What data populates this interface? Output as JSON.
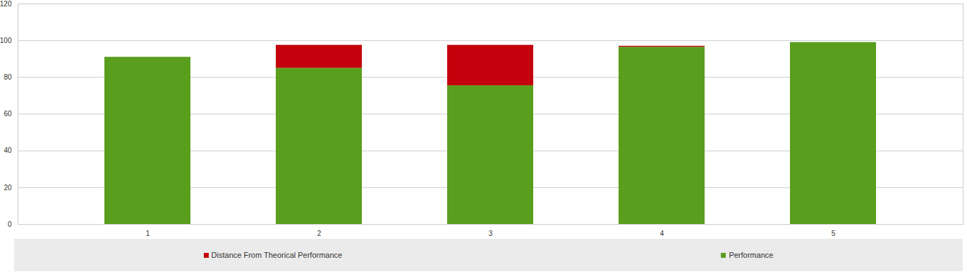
{
  "chart_data": {
    "type": "bar",
    "stacked": true,
    "grid": true,
    "legend": "bottom",
    "categories": [
      "1",
      "2",
      "3",
      "4",
      "5"
    ],
    "series": [
      {
        "name": "Performance",
        "color": "#5a9e1e",
        "values": [
          91,
          85,
          75.5,
          96.5,
          99
        ]
      },
      {
        "name": "Distance From Theorical Performance",
        "color": "#c4000c",
        "values": [
          0,
          12.5,
          22,
          0.5,
          0
        ]
      }
    ],
    "ylim": [
      0,
      120
    ],
    "yticks": [
      0,
      20,
      40,
      60,
      80,
      100,
      120
    ]
  }
}
